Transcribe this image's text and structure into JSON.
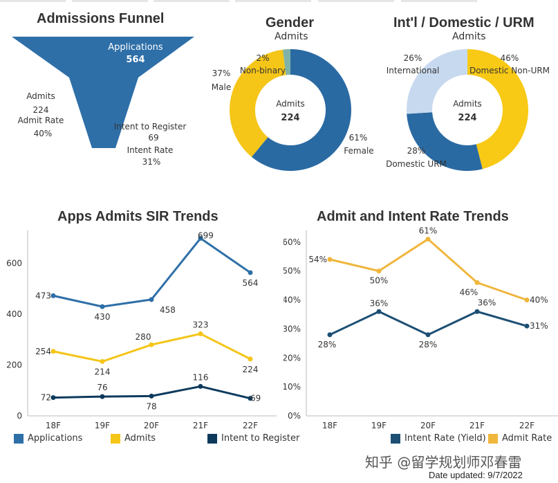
{
  "colors": {
    "applications": "#2e6fa8",
    "admits": "#f5c518",
    "intent": "#0d3a5c",
    "yield": "#1d4f74",
    "admit_rate": "#f0b63c",
    "male": "#f5c518",
    "female": "#2a6aa3",
    "nonbinary": "#7fb3a9",
    "intl": "#c7d9ef",
    "dom_urm": "#2a6aa3",
    "dom_nonurm": "#f8c915",
    "axis": "#bbbbbb",
    "text": "#333333"
  },
  "funnel": {
    "title": "Admissions Funnel",
    "applications_label": "Applications",
    "applications_value": "564",
    "admits_label": "Admits",
    "admits_value": "224",
    "admit_rate_label": "Admit Rate",
    "admit_rate_value": "40%",
    "intent_label": "Intent to Register",
    "intent_value": "69",
    "intent_rate_label": "Intent Rate",
    "intent_rate_value": "31%"
  },
  "chart_data": [
    {
      "type": "pie",
      "title": "Gender",
      "subtitle": "Admits",
      "center_label": "Admits",
      "center_value": "224",
      "slices": [
        {
          "name": "Female",
          "value": 61,
          "pct_label": "61%",
          "color_key": "female"
        },
        {
          "name": "Male",
          "value": 37,
          "pct_label": "37%",
          "color_key": "male"
        },
        {
          "name": "Non-binary",
          "value": 2,
          "pct_label": "2%",
          "color_key": "nonbinary"
        }
      ]
    },
    {
      "type": "pie",
      "title": "Int'l / Domestic / URM",
      "subtitle": "Admits",
      "center_label": "Admits",
      "center_value": "224",
      "slices": [
        {
          "name": "Domestic Non-URM",
          "value": 46,
          "pct_label": "46%",
          "color_key": "dom_nonurm"
        },
        {
          "name": "Domestic URM",
          "value": 28,
          "pct_label": "28%",
          "color_key": "dom_urm"
        },
        {
          "name": "International",
          "value": 26,
          "pct_label": "26%",
          "color_key": "intl"
        }
      ]
    },
    {
      "type": "line",
      "title": "Apps Admits SIR Trends",
      "categories": [
        "18F",
        "19F",
        "20F",
        "21F",
        "22F"
      ],
      "ylim": [
        0,
        730
      ],
      "yticks": [
        0,
        200,
        400,
        600
      ],
      "ytick_labels": [
        "0",
        "200",
        "400",
        "600"
      ],
      "series": [
        {
          "name": "Applications",
          "values": [
            473,
            430,
            458,
            699,
            564
          ],
          "labels": [
            "473",
            "430",
            "458",
            "699",
            "564"
          ],
          "color_key": "applications"
        },
        {
          "name": "Admits",
          "values": [
            254,
            214,
            280,
            323,
            224
          ],
          "labels": [
            "254",
            "214",
            "280",
            "323",
            "224"
          ],
          "color_key": "admits"
        },
        {
          "name": "Intent to Register",
          "values": [
            72,
            76,
            78,
            116,
            69
          ],
          "labels": [
            "72",
            "76",
            "78",
            "116",
            "69"
          ],
          "color_key": "intent"
        }
      ]
    },
    {
      "type": "line",
      "title": "Admit and Intent Rate Trends",
      "categories": [
        "18F",
        "19F",
        "20F",
        "21F",
        "22F"
      ],
      "ylim": [
        0,
        0.64
      ],
      "yticks": [
        0,
        0.1,
        0.2,
        0.3,
        0.4,
        0.5,
        0.6
      ],
      "ytick_labels": [
        "0%",
        "10%",
        "20%",
        "30%",
        "40%",
        "50%",
        "60%"
      ],
      "series": [
        {
          "name": "Intent Rate (Yield)",
          "values": [
            0.28,
            0.36,
            0.28,
            0.36,
            0.31
          ],
          "labels": [
            "28%",
            "36%",
            "28%",
            "36%",
            "31%"
          ],
          "color_key": "yield"
        },
        {
          "name": "Admit Rate",
          "values": [
            0.54,
            0.5,
            0.61,
            0.46,
            0.4
          ],
          "labels": [
            "54%",
            "50%",
            "61%",
            "46%",
            "40%"
          ],
          "color_key": "admit_rate"
        }
      ]
    }
  ],
  "footer": {
    "watermark": "知乎 @留学规划师邓春雷",
    "updated": "Date updated: 9/7/2022"
  }
}
